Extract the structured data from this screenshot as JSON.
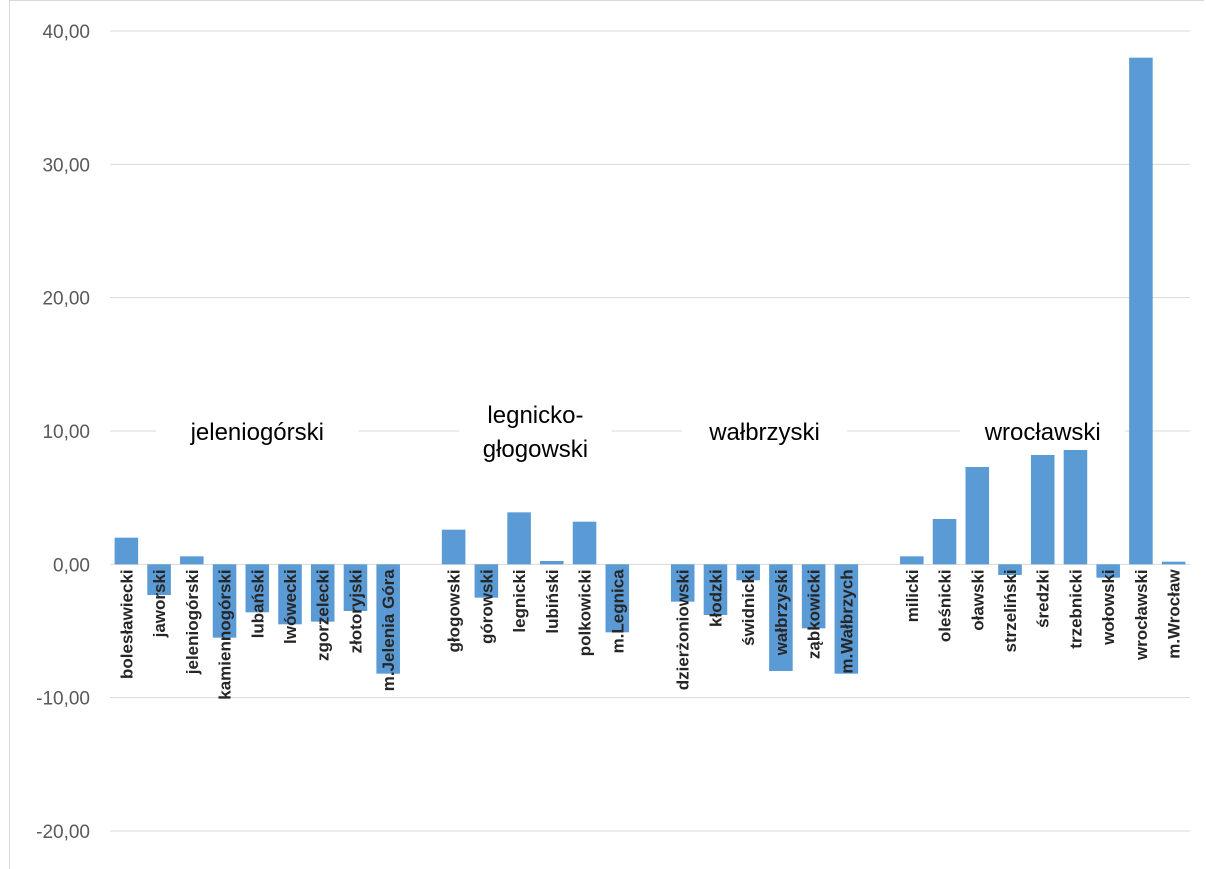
{
  "chart_data": {
    "type": "bar",
    "ylim": [
      -20,
      40
    ],
    "yticks": [
      "-20,00",
      "-10,00",
      "0,00",
      "10,00",
      "20,00",
      "30,00",
      "40,00"
    ],
    "grid": true,
    "bar_color": "#5b9bd5",
    "groups": [
      {
        "label": "jeleniogórski",
        "categories": [
          "bolesławiecki",
          "jaworski",
          "jeleniogórski",
          "kamiennogórski",
          "lubański",
          "lwówecki",
          "zgorzelecki",
          "złotoryjski",
          "m.Jelenia Góra"
        ],
        "values": [
          2.0,
          -2.3,
          0.6,
          -5.5,
          -3.6,
          -4.5,
          -4.3,
          -3.5,
          -8.2
        ]
      },
      {
        "label": "legnicko-głogowski",
        "label_lines": [
          "legnicko-",
          "głogowski"
        ],
        "categories": [
          "głogowski",
          "górowski",
          "legnicki",
          "lubiński",
          "polkowicki",
          "m.Legnica"
        ],
        "values": [
          2.6,
          -2.5,
          3.9,
          0.25,
          3.2,
          -5.1
        ]
      },
      {
        "label": "wałbrzyski",
        "categories": [
          "dzierżoniowski",
          "kłodzki",
          "świdnicki",
          "wałbrzyski",
          "ząbkowicki",
          "m.Wałbrzych"
        ],
        "values": [
          -2.8,
          -3.8,
          -1.2,
          -8.0,
          -4.8,
          -8.2
        ]
      },
      {
        "label": "wrocławski",
        "categories": [
          "milicki",
          "oleśnicki",
          "oławski",
          "strzeliński",
          "średzki",
          "trzebnicki",
          "wołowski",
          "wrocławski",
          "m.Wrocław"
        ],
        "values": [
          0.6,
          3.4,
          7.3,
          -0.8,
          8.2,
          9.0,
          -1.0,
          38.0,
          0.2
        ]
      }
    ]
  }
}
